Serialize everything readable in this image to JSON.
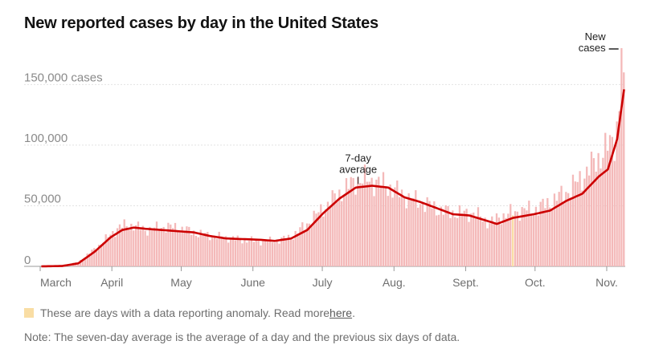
{
  "title": "New reported cases by day in the United States",
  "chart_data": {
    "type": "bar",
    "title": "New reported cases by day in the United States",
    "x_start": "2020-03-01",
    "x_end": "2020-11-08",
    "x_ticks": [
      {
        "date": "2020-03-01",
        "label": "March"
      },
      {
        "date": "2020-04-01",
        "label": "April"
      },
      {
        "date": "2020-05-01",
        "label": "May"
      },
      {
        "date": "2020-06-01",
        "label": "June"
      },
      {
        "date": "2020-07-01",
        "label": "July"
      },
      {
        "date": "2020-08-01",
        "label": "Aug."
      },
      {
        "date": "2020-09-01",
        "label": "Sept."
      },
      {
        "date": "2020-10-01",
        "label": "Oct."
      },
      {
        "date": "2020-11-01",
        "label": "Nov."
      }
    ],
    "y_ticks": [
      {
        "value": 0,
        "label": "0"
      },
      {
        "value": 50000,
        "label": "50,000"
      },
      {
        "value": 100000,
        "label": "100,000"
      },
      {
        "value": 150000,
        "label": "150,000 cases"
      }
    ],
    "ylim": [
      0,
      180000
    ],
    "grid": true,
    "series": [
      {
        "name": "New cases",
        "type": "bar",
        "color": "#f4b9b9"
      },
      {
        "name": "7-day average",
        "type": "line",
        "color": "#cc0000"
      }
    ],
    "seven_day_average_points": [
      [
        "2020-03-01",
        0
      ],
      [
        "2020-03-10",
        300
      ],
      [
        "2020-03-17",
        2500
      ],
      [
        "2020-03-24",
        12000
      ],
      [
        "2020-03-31",
        24000
      ],
      [
        "2020-04-05",
        30000
      ],
      [
        "2020-04-10",
        32000
      ],
      [
        "2020-04-15",
        31000
      ],
      [
        "2020-04-22",
        30000
      ],
      [
        "2020-04-29",
        29000
      ],
      [
        "2020-05-06",
        28000
      ],
      [
        "2020-05-13",
        25000
      ],
      [
        "2020-05-20",
        23000
      ],
      [
        "2020-05-27",
        22500
      ],
      [
        "2020-06-03",
        22000
      ],
      [
        "2020-06-10",
        21000
      ],
      [
        "2020-06-17",
        23000
      ],
      [
        "2020-06-24",
        30000
      ],
      [
        "2020-07-01",
        44000
      ],
      [
        "2020-07-08",
        56000
      ],
      [
        "2020-07-15",
        65000
      ],
      [
        "2020-07-22",
        66500
      ],
      [
        "2020-07-29",
        65000
      ],
      [
        "2020-08-05",
        57000
      ],
      [
        "2020-08-12",
        53000
      ],
      [
        "2020-08-19",
        48000
      ],
      [
        "2020-08-26",
        43000
      ],
      [
        "2020-09-02",
        42000
      ],
      [
        "2020-09-09",
        38000
      ],
      [
        "2020-09-14",
        35000
      ],
      [
        "2020-09-21",
        40000
      ],
      [
        "2020-09-30",
        43000
      ],
      [
        "2020-10-07",
        46000
      ],
      [
        "2020-10-14",
        54000
      ],
      [
        "2020-10-21",
        60000
      ],
      [
        "2020-10-28",
        74000
      ],
      [
        "2020-11-01",
        80000
      ],
      [
        "2020-11-05",
        105000
      ],
      [
        "2020-11-08",
        146000
      ]
    ],
    "daily_cases_points": [
      [
        "2020-03-01",
        0
      ],
      [
        "2020-03-10",
        400
      ],
      [
        "2020-03-17",
        3500
      ],
      [
        "2020-03-24",
        14000
      ],
      [
        "2020-03-31",
        26000
      ],
      [
        "2020-04-04",
        33000
      ],
      [
        "2020-04-10",
        34000
      ],
      [
        "2020-04-15",
        30000
      ],
      [
        "2020-04-24",
        33000
      ],
      [
        "2020-05-01",
        31000
      ],
      [
        "2020-05-08",
        27000
      ],
      [
        "2020-05-15",
        25000
      ],
      [
        "2020-05-22",
        23000
      ],
      [
        "2020-06-01",
        21000
      ],
      [
        "2020-06-10",
        21000
      ],
      [
        "2020-06-17",
        24000
      ],
      [
        "2020-06-24",
        35000
      ],
      [
        "2020-07-01",
        48000
      ],
      [
        "2020-07-08",
        60000
      ],
      [
        "2020-07-16",
        72000
      ],
      [
        "2020-07-24",
        70000
      ],
      [
        "2020-07-31",
        64000
      ],
      [
        "2020-08-07",
        56000
      ],
      [
        "2020-08-14",
        52000
      ],
      [
        "2020-08-21",
        46000
      ],
      [
        "2020-08-28",
        44000
      ],
      [
        "2020-09-04",
        44000
      ],
      [
        "2020-09-11",
        36000
      ],
      [
        "2020-09-18",
        43000
      ],
      [
        "2020-09-25",
        46000
      ],
      [
        "2020-10-02",
        48000
      ],
      [
        "2020-10-09",
        55000
      ],
      [
        "2020-10-16",
        64000
      ],
      [
        "2020-10-23",
        78000
      ],
      [
        "2020-10-30",
        94000
      ],
      [
        "2020-11-04",
        105000
      ],
      [
        "2020-11-06",
        128000
      ],
      [
        "2020-11-07",
        180000
      ],
      [
        "2020-11-08",
        160000
      ]
    ],
    "anomaly_dates": [
      "2020-09-21"
    ],
    "annotations": [
      {
        "text_lines": [
          "7-day",
          "average"
        ],
        "date": "2020-07-16",
        "value": 66000
      },
      {
        "text_lines": [
          "New",
          "cases"
        ],
        "date": "2020-11-07",
        "value": 180000
      }
    ]
  },
  "legend": {
    "anomaly_text": "These are days with a data reporting anomaly. Read more ",
    "link_text": "here",
    "tail": ".",
    "anomaly_color": "#f9dda4"
  },
  "note": "Note: The seven-day average is the average of a day and the previous six days of data."
}
